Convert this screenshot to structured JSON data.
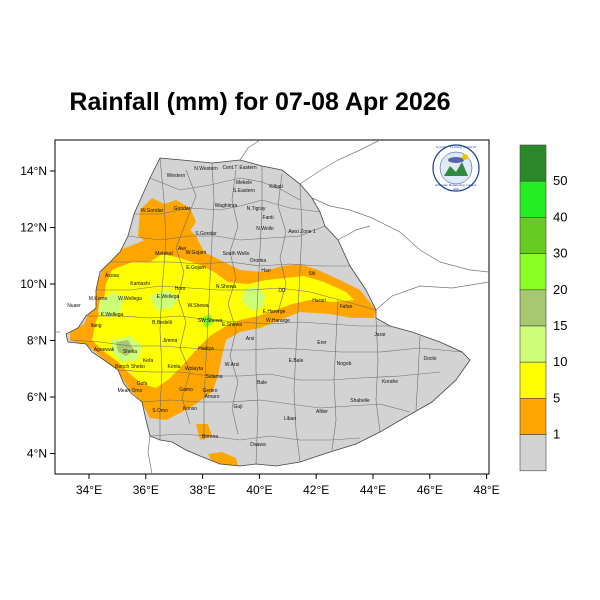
{
  "title": "Rainfall (mm) for 07-08 Apr 2026",
  "map": {
    "lon_ticks": [
      "34°E",
      "36°E",
      "38°E",
      "40°E",
      "42°E",
      "44°E",
      "46°E",
      "48°E"
    ],
    "lat_ticks": [
      "14°N",
      "12°N",
      "10°N",
      "8°N",
      "6°N",
      "4°N"
    ],
    "region_labels": [
      "Western",
      "N.Western",
      "Cent.T",
      "Eastern",
      "Mekele",
      "S.Eastern",
      "Kilbati",
      "W.Gondar",
      "Gondar",
      "Waghimra",
      "N.Tigray",
      "Fanti",
      "N.Wollo",
      "S.Gondar",
      "Awsi Zone 1",
      "Metekel",
      "Awi",
      "W.Gojam",
      "South Wello",
      "Oromia",
      "Asosa",
      "E.Gojam",
      "Hari",
      "Siti",
      "Kamashi",
      "Horo",
      "N.Shewa",
      "DD",
      "M.Komo",
      "W.Wellega",
      "E.Wellega",
      "W.Shewa",
      "E.Harerge",
      "Harari",
      "Fafan",
      "K.Wellega",
      "W.Hararge",
      "Nuaer",
      "B.Bedelli",
      "SW.Shewa",
      "E.Shewa",
      "Arsi",
      "Jarar",
      "Itang",
      "Jimma",
      "Erer",
      "Agnewak",
      "Sheka",
      "Bench Sheko",
      "Kefa",
      "Hadiya",
      "W.Arsi",
      "E.Bale",
      "Nogob",
      "Doolo",
      "Konta",
      "Wolayta",
      "Meah Omo",
      "Sidama",
      "Bale",
      "Korahe",
      "Gofa",
      "Gamo",
      "Gedeo",
      "Shabelle",
      "S.Omo",
      "Amaro",
      "Guji",
      "Liban",
      "Afder",
      "Konso",
      "Borena",
      "Daawa"
    ],
    "logo": {
      "top_text": "የኢትዮጵያ ሚቲዎሮሎጂ ኢንስቲትዩት",
      "bottom_text": "Ethiopian Meteorology Institute",
      "abbr": "EMI"
    }
  },
  "legend": {
    "labels": [
      "50",
      "40",
      "30",
      "20",
      "15",
      "10",
      "5",
      "1"
    ],
    "colors": [
      "#2a8a2a",
      "#22ee22",
      "#66cc22",
      "#88ff22",
      "#a7c86f",
      "#ccff77",
      "#ffff00",
      "#ffa500",
      "#d3d3d3"
    ]
  },
  "colors": {
    "land": "#d3d3d3",
    "rain_1_5": "#ffa500",
    "rain_5_10": "#ffff00",
    "rain_10_15": "#ccff77",
    "rain_15_20": "#a7c86f",
    "rain_20_30": "#88ff22",
    "rain_30_40": "#66cc22"
  }
}
